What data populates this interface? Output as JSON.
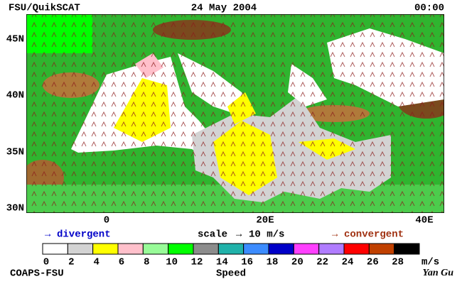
{
  "header": {
    "left": "FSU/QuikSCAT",
    "date": "24 May 2004",
    "time": "00:00"
  },
  "lat_labels": [
    "45N",
    "40N",
    "35N",
    "30N"
  ],
  "lon_labels": [
    "0",
    "20E",
    "40E"
  ],
  "legend": {
    "divergent": "divergent",
    "scale": "scale",
    "scale_value": "10 m/s",
    "convergent": "convergent"
  },
  "colorbar": {
    "labels": [
      0,
      2,
      4,
      6,
      8,
      10,
      12,
      14,
      16,
      18,
      20,
      22,
      24,
      26,
      28
    ],
    "unit": "m/s",
    "title": "Speed",
    "colors": [
      "#ffffff",
      "#d3d3d3",
      "#ffff00",
      "#ffc0cb",
      "#98fb98",
      "#00ff00",
      "#8c8c8c",
      "#20b2aa",
      "#3c8cff",
      "#0000c8",
      "#ff40ff",
      "#b07cff",
      "#ff0000",
      "#c04000",
      "#000000"
    ]
  },
  "footer": {
    "left": "COAPS-FSU",
    "right": "Yan Gu"
  }
}
